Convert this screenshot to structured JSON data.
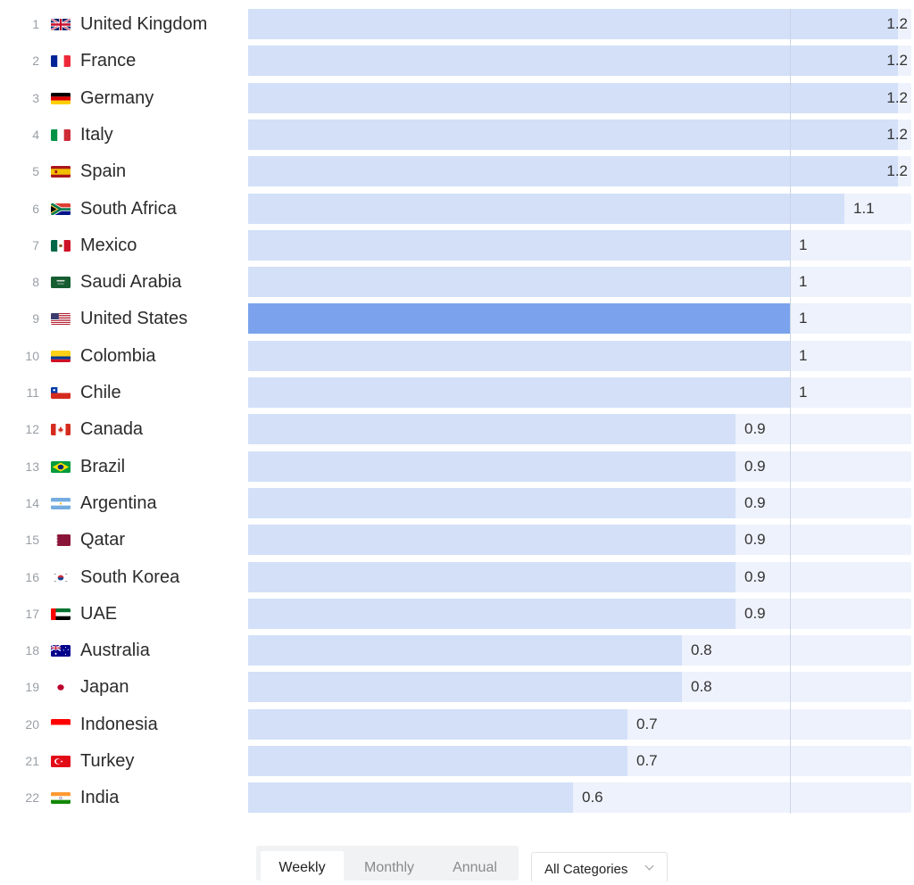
{
  "chart_data": {
    "type": "bar",
    "orientation": "horizontal",
    "title": "",
    "xlabel": "",
    "ylabel": "",
    "xlim": [
      0,
      1.224
    ],
    "grid": {
      "vertical_reference_at": 1.0
    },
    "highlight": "United States",
    "categories": [
      "United Kingdom",
      "France",
      "Germany",
      "Italy",
      "Spain",
      "South Africa",
      "Mexico",
      "Saudi Arabia",
      "United States",
      "Colombia",
      "Chile",
      "Canada",
      "Brazil",
      "Argentina",
      "Qatar",
      "South Korea",
      "UAE",
      "Australia",
      "Japan",
      "Indonesia",
      "Turkey",
      "India"
    ],
    "values": [
      1.2,
      1.2,
      1.2,
      1.2,
      1.2,
      1.1,
      1,
      1,
      1,
      1,
      1,
      0.9,
      0.9,
      0.9,
      0.9,
      0.9,
      0.9,
      0.8,
      0.8,
      0.7,
      0.7,
      0.6
    ],
    "value_labels": [
      "1.2",
      "1.2",
      "1.2",
      "1.2",
      "1.2",
      "1.1",
      "1",
      "1",
      "1",
      "1",
      "1",
      "0.9",
      "0.9",
      "0.9",
      "0.9",
      "0.9",
      "0.9",
      "0.8",
      "0.8",
      "0.7",
      "0.7",
      "0.6"
    ]
  },
  "rows": [
    {
      "rank": "1",
      "country": "United Kingdom",
      "flag": "gb-flag-icon",
      "value": "1.2",
      "v": 1.2
    },
    {
      "rank": "2",
      "country": "France",
      "flag": "fr-flag-icon",
      "value": "1.2",
      "v": 1.2
    },
    {
      "rank": "3",
      "country": "Germany",
      "flag": "de-flag-icon",
      "value": "1.2",
      "v": 1.2
    },
    {
      "rank": "4",
      "country": "Italy",
      "flag": "it-flag-icon",
      "value": "1.2",
      "v": 1.2
    },
    {
      "rank": "5",
      "country": "Spain",
      "flag": "es-flag-icon",
      "value": "1.2",
      "v": 1.2
    },
    {
      "rank": "6",
      "country": "South Africa",
      "flag": "za-flag-icon",
      "value": "1.1",
      "v": 1.1
    },
    {
      "rank": "7",
      "country": "Mexico",
      "flag": "mx-flag-icon",
      "value": "1",
      "v": 1.0
    },
    {
      "rank": "8",
      "country": "Saudi Arabia",
      "flag": "sa-flag-icon",
      "value": "1",
      "v": 1.0
    },
    {
      "rank": "9",
      "country": "United States",
      "flag": "us-flag-icon",
      "value": "1",
      "v": 1.0,
      "highlight": true
    },
    {
      "rank": "10",
      "country": "Colombia",
      "flag": "co-flag-icon",
      "value": "1",
      "v": 1.0
    },
    {
      "rank": "11",
      "country": "Chile",
      "flag": "cl-flag-icon",
      "value": "1",
      "v": 1.0
    },
    {
      "rank": "12",
      "country": "Canada",
      "flag": "ca-flag-icon",
      "value": "0.9",
      "v": 0.9
    },
    {
      "rank": "13",
      "country": "Brazil",
      "flag": "br-flag-icon",
      "value": "0.9",
      "v": 0.9
    },
    {
      "rank": "14",
      "country": "Argentina",
      "flag": "ar-flag-icon",
      "value": "0.9",
      "v": 0.9
    },
    {
      "rank": "15",
      "country": "Qatar",
      "flag": "qa-flag-icon",
      "value": "0.9",
      "v": 0.9
    },
    {
      "rank": "16",
      "country": "South Korea",
      "flag": "kr-flag-icon",
      "value": "0.9",
      "v": 0.9
    },
    {
      "rank": "17",
      "country": "UAE",
      "flag": "ae-flag-icon",
      "value": "0.9",
      "v": 0.9
    },
    {
      "rank": "18",
      "country": "Australia",
      "flag": "au-flag-icon",
      "value": "0.8",
      "v": 0.8
    },
    {
      "rank": "19",
      "country": "Japan",
      "flag": "jp-flag-icon",
      "value": "0.8",
      "v": 0.8
    },
    {
      "rank": "20",
      "country": "Indonesia",
      "flag": "id-flag-icon",
      "value": "0.7",
      "v": 0.7
    },
    {
      "rank": "21",
      "country": "Turkey",
      "flag": "tr-flag-icon",
      "value": "0.7",
      "v": 0.7
    },
    {
      "rank": "22",
      "country": "India",
      "flag": "in-flag-icon",
      "value": "0.6",
      "v": 0.6
    }
  ],
  "colors": {
    "bar": "#d3e0f8",
    "bar_highlight": "#7ba3ed",
    "track": "#eef2fc",
    "gridline": "#cdd5e6"
  },
  "controls": {
    "period_tabs": [
      {
        "label": "Weekly",
        "active": true
      },
      {
        "label": "Monthly",
        "active": false
      },
      {
        "label": "Annual",
        "active": false
      }
    ],
    "category_dropdown": {
      "selected": "All Categories"
    }
  }
}
